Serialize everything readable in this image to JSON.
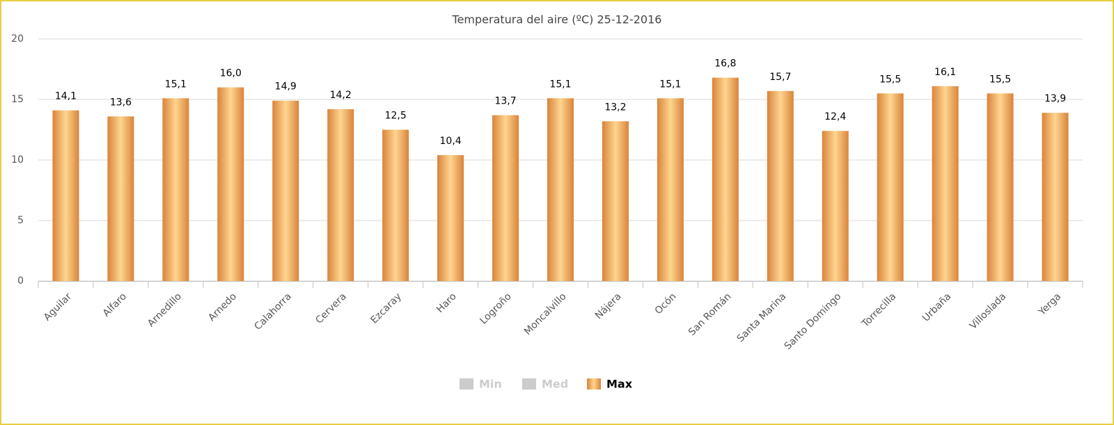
{
  "chart_data": {
    "type": "bar",
    "title": "Temperatura del aire (ºC) 25-12-2016",
    "categories": [
      "Aguilar",
      "Alfaro",
      "Arnedillo",
      "Arnedo",
      "Calahorra",
      "Cervera",
      "Ezcaray",
      "Haro",
      "Logroño",
      "Moncalvillo",
      "Nájera",
      "Ocón",
      "San Román",
      "Santa Marina",
      "Santo Domingo",
      "Torrecilla",
      "Urbaña",
      "Villoslada",
      "Yerga"
    ],
    "series": [
      {
        "name": "Min",
        "color": "#cccccc",
        "visible": false
      },
      {
        "name": "Med",
        "color": "#cccccc",
        "visible": false
      },
      {
        "name": "Max",
        "color": "#e8944a",
        "visible": true,
        "values": [
          14.1,
          13.6,
          15.1,
          16.0,
          14.9,
          14.2,
          12.5,
          10.4,
          13.7,
          15.1,
          13.2,
          15.1,
          16.8,
          15.7,
          12.4,
          15.5,
          16.1,
          15.5,
          13.9
        ],
        "value_labels": [
          "14,1",
          "13,6",
          "15,1",
          "16,0",
          "14,9",
          "14,2",
          "12,5",
          "10,4",
          "13,7",
          "15,1",
          "13,2",
          "15,1",
          "16,8",
          "15,7",
          "12,4",
          "15,5",
          "16,1",
          "15,5",
          "13,9"
        ]
      }
    ],
    "ylim": [
      0,
      20
    ],
    "yticks": [
      0,
      5,
      10,
      15,
      20
    ],
    "grid": true
  }
}
